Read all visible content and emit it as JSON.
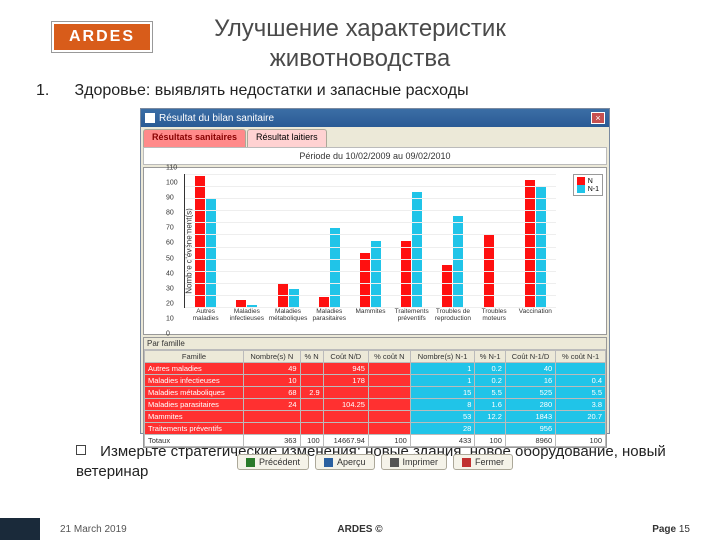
{
  "logo_text": "ARDES",
  "title_line1": "Улучшение характеристик",
  "title_line2": "животноводства",
  "bullet1_num": "1.",
  "bullet1_text": "Здоровье: выявлять недостатки и запасные расходы",
  "bullet2_text": "Измерьте стратегические изменения: новые здания, новое оборудование, новый ветеринар",
  "footer": {
    "date": "21 March 2019",
    "mid": "ARDES ©",
    "page_prefix": "Page ",
    "page_num": "15"
  },
  "window": {
    "title": "Résultat du bilan sanitaire",
    "tabs": [
      "Résultats sanitaires",
      "Résultat laitiers"
    ],
    "periode": "Période du 10/02/2009 au 09/02/2010",
    "chart": {
      "type": "bar",
      "ylabel": "Nombre d'événement(s)",
      "ylim": [
        0,
        110
      ],
      "ytick_step": 10,
      "background_color": "#ffffff",
      "grid_color": "#eeeeee",
      "series": [
        {
          "name": "N",
          "color": "#ff1010"
        },
        {
          "name": "N-1",
          "color": "#20c4e8"
        }
      ],
      "legend_labels": [
        "N",
        "N-1"
      ],
      "categories": [
        "Autres maladies",
        "Maladies infectieuses",
        "Maladies métaboliques",
        "Maladies parasitaires",
        "Mammites",
        "Traitements préventifs",
        "Troubles de reproduction",
        "Troubles moteurs",
        "Vaccination"
      ],
      "values_N": [
        108,
        6,
        20,
        8,
        45,
        55,
        35,
        60,
        105
      ],
      "values_N1": [
        90,
        2,
        15,
        65,
        55,
        95,
        75,
        0,
        100
      ]
    },
    "table": {
      "caption": "Par famille",
      "columns": [
        "Famille",
        "Nombre(s) N",
        "% N",
        "Coût N/D",
        "% coût N",
        "Nombre(s) N-1",
        "% N-1",
        "Coût N-1/D",
        "% coût N-1"
      ],
      "col_bg": [
        "#ff3030",
        "#ff3030",
        "#ff3030",
        "#ff3030",
        "#ff3030",
        "#20c4e8",
        "#20c4e8",
        "#20c4e8",
        "#20c4e8"
      ],
      "rows": [
        [
          "Autres maladies",
          "49",
          "",
          "945",
          "",
          "1",
          "0.2",
          "40",
          ""
        ],
        [
          "Maladies infectieuses",
          "10",
          "",
          "178",
          "",
          "1",
          "0.2",
          "16",
          "0.4"
        ],
        [
          "Maladies métaboliques",
          "68",
          "2.9",
          "",
          "",
          "15",
          "5.5",
          "525",
          "5.5"
        ],
        [
          "Maladies parasitaires",
          "24",
          "",
          "104.25",
          "",
          "8",
          "1.6",
          "280",
          "3.8"
        ],
        [
          "Mammites",
          "",
          "",
          "",
          "",
          "53",
          "12.2",
          "1843",
          "20.7"
        ],
        [
          "Traitements préventifs",
          "",
          "",
          "",
          "",
          "28",
          "",
          "956",
          ""
        ]
      ],
      "totals": [
        "Totaux",
        "363",
        "100",
        "14667.94",
        "100",
        "433",
        "100",
        "8960",
        "100"
      ]
    },
    "buttons": [
      {
        "icon": "arrow-left-icon",
        "icon_color": "#2a7a2a",
        "label": "Précédent"
      },
      {
        "icon": "search-icon",
        "icon_color": "#2a60a0",
        "label": "Aperçu"
      },
      {
        "icon": "printer-icon",
        "icon_color": "#555555",
        "label": "Imprimer"
      },
      {
        "icon": "close-icon",
        "icon_color": "#c03030",
        "label": "Fermer"
      }
    ]
  }
}
